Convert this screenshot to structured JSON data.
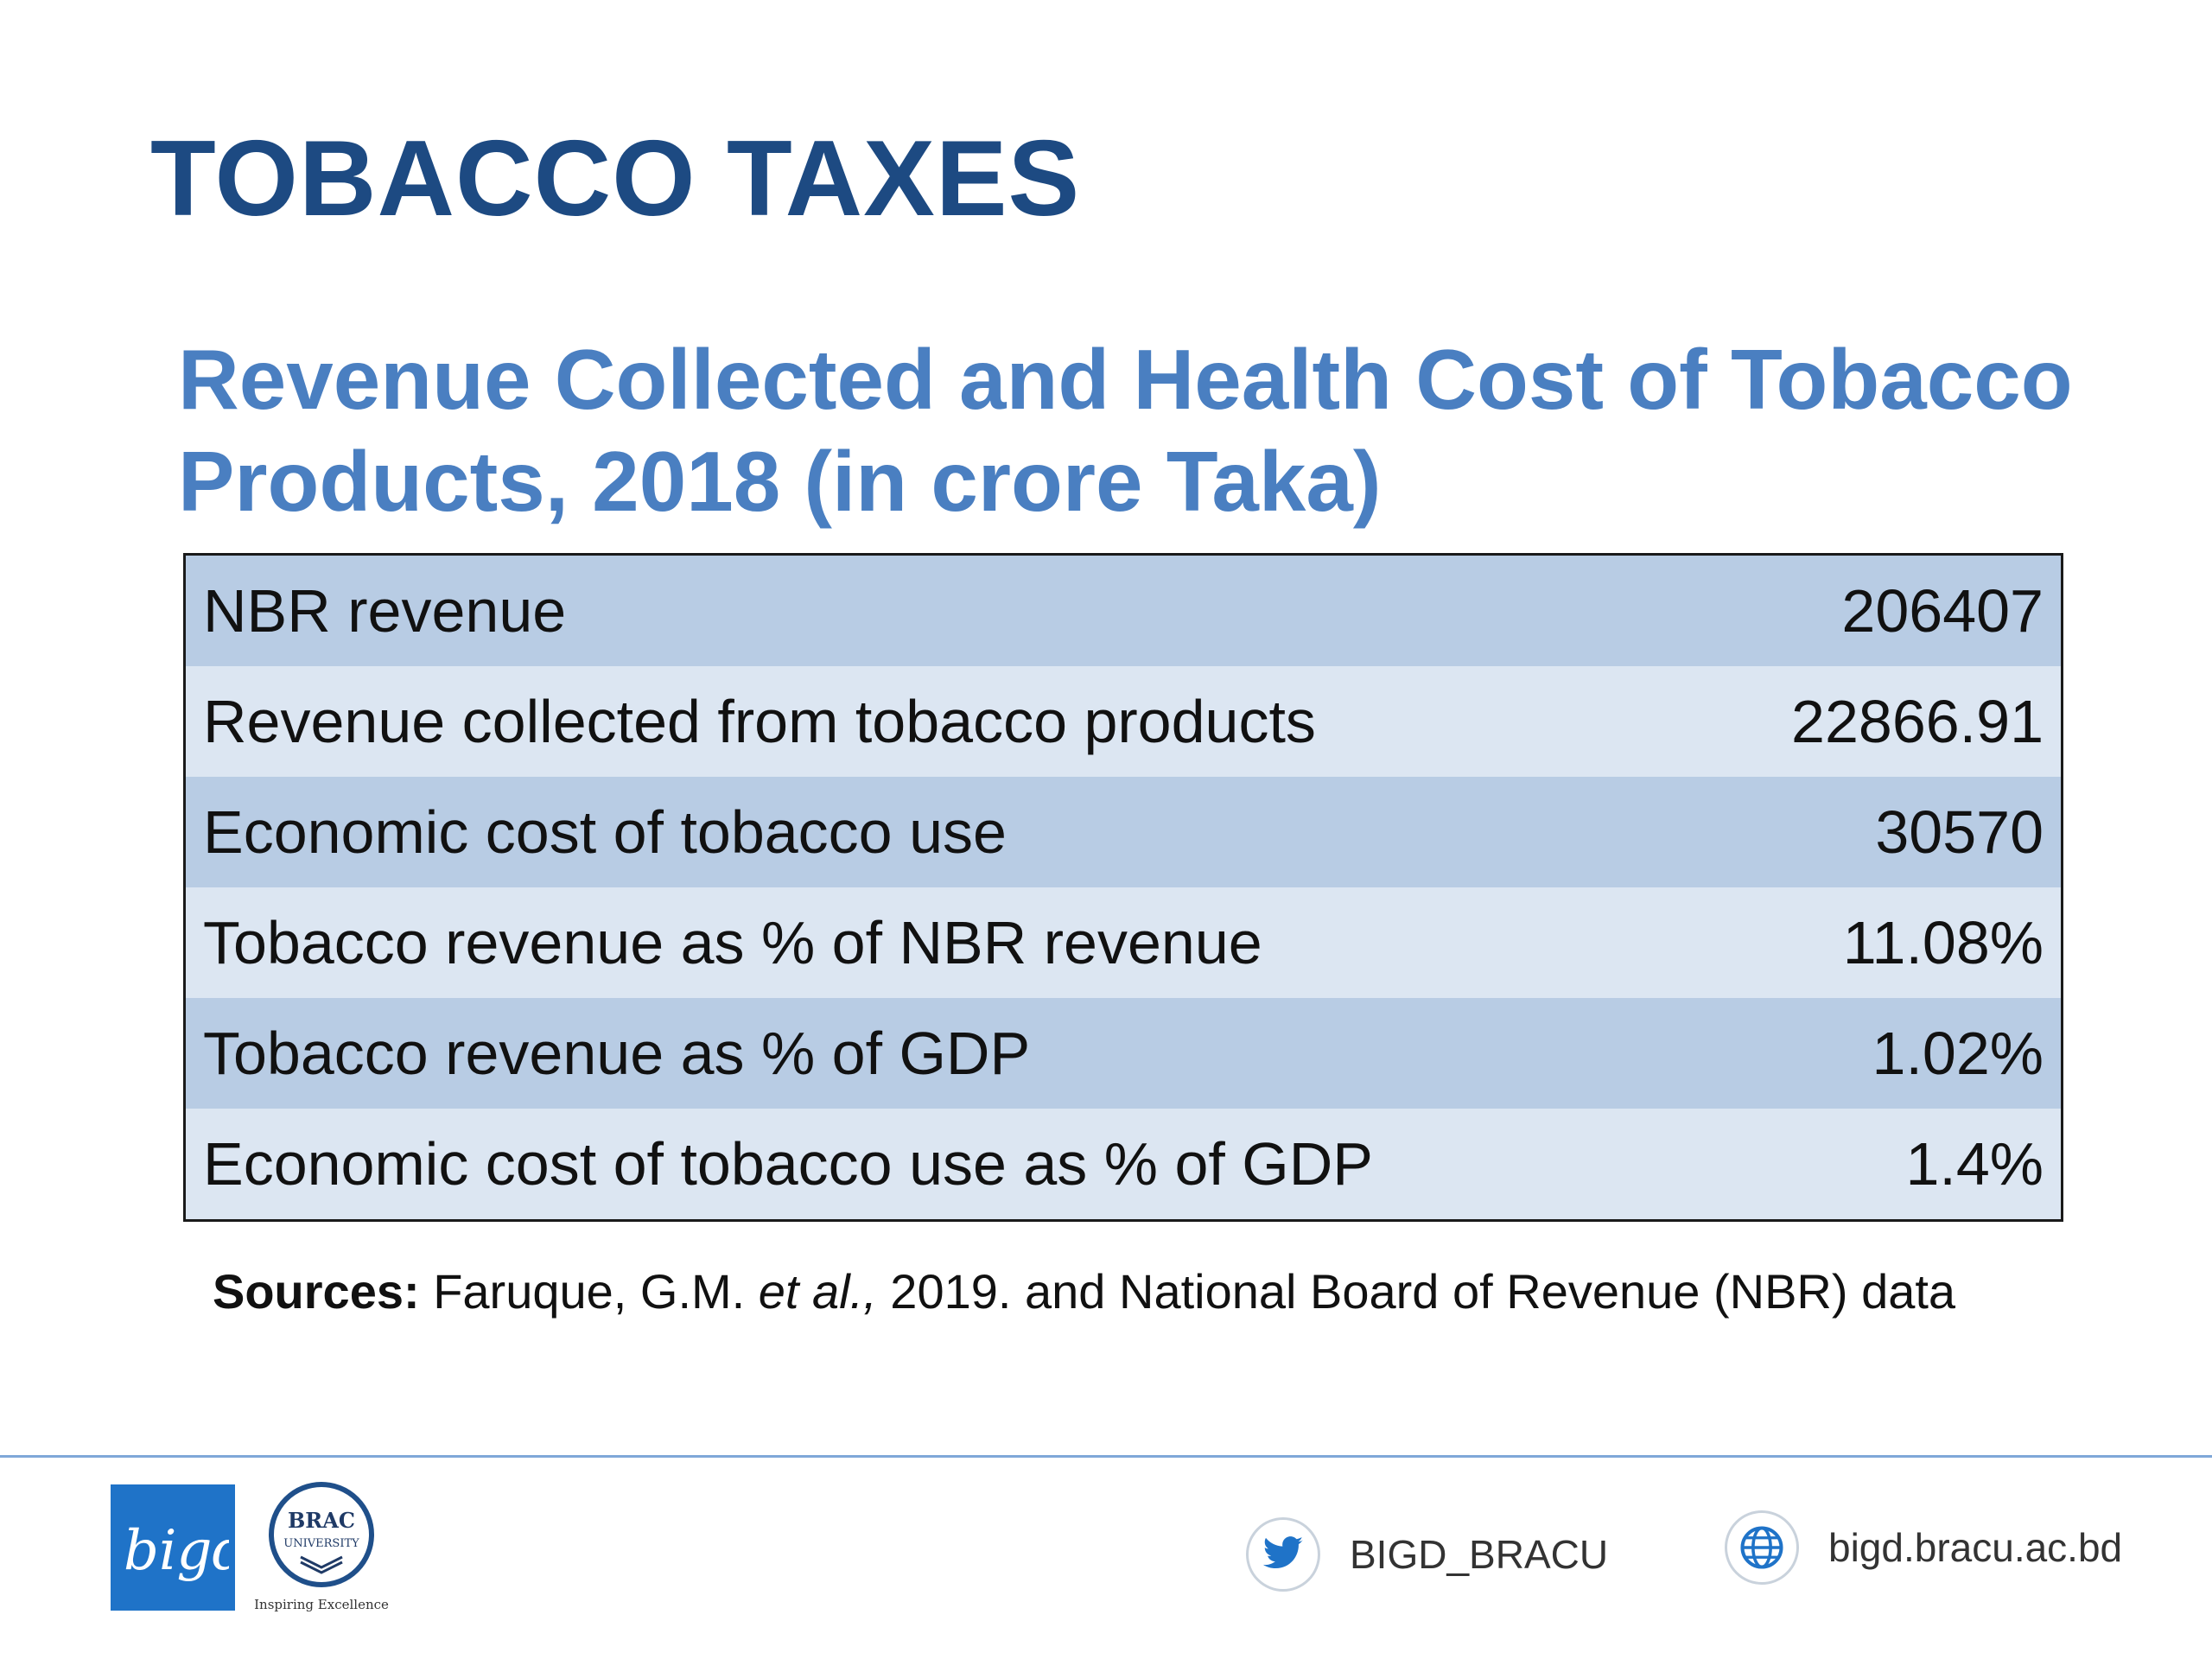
{
  "slide": {
    "title": "TOBACCO TAXES",
    "subtitle": "Revenue Collected and Health Cost of Tobacco Products, 2018 (in crore Taka)"
  },
  "table": {
    "rows": [
      {
        "label": "NBR revenue",
        "value": "206407"
      },
      {
        "label": "Revenue collected from tobacco products",
        "value": "22866.91"
      },
      {
        "label": "Economic cost of tobacco use",
        "value": "30570"
      },
      {
        "label": "Tobacco revenue as % of NBR revenue",
        "value": "11.08%"
      },
      {
        "label": "Tobacco revenue as % of GDP",
        "value": "1.02%"
      },
      {
        "label": "Economic cost of tobacco use as % of GDP",
        "value": "1.4%"
      }
    ]
  },
  "sources": {
    "label": "Sources:",
    "text_before": " Faruque, G.M. ",
    "italic": "et al.,",
    "text_after": " 2019. and National Board of Revenue (NBR) data"
  },
  "footer": {
    "bigd_logo_text": "bigd",
    "brac_logo_line1": "BRAC",
    "brac_logo_line2": "UNIVERSITY",
    "brac_tagline": "Inspiring Excellence",
    "twitter_handle": "BIGD_BRACU",
    "website": "bigd.bracu.ac.bd"
  },
  "colors": {
    "title": "#1d4a82",
    "subtitle": "#4a7fc1",
    "row_dark": "#b8cce4",
    "row_light": "#dce6f2",
    "logo_blue": "#1f73c8"
  },
  "icons": [
    "twitter-icon",
    "globe-icon",
    "bigd-logo",
    "brac-university-logo"
  ]
}
